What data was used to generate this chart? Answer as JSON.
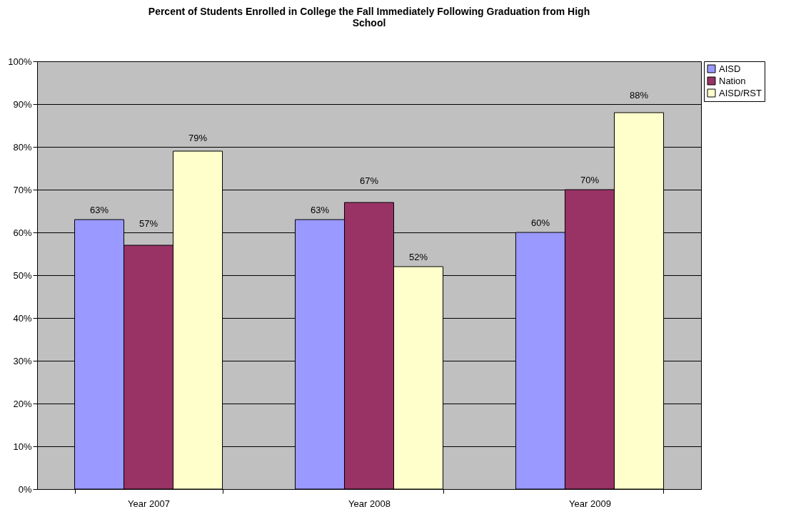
{
  "chart_data": {
    "type": "bar",
    "title": "Percent of Students Enrolled in College the Fall Immediately Following Graduation from High School",
    "categories": [
      "Year 2007",
      "Year 2008",
      "Year 2009"
    ],
    "series": [
      {
        "name": "AISD",
        "color": "#9999ff",
        "values": [
          63,
          63,
          60
        ],
        "value_labels": [
          "63%",
          "63%",
          "60%"
        ]
      },
      {
        "name": "Nation",
        "color": "#993366",
        "values": [
          57,
          67,
          70
        ],
        "value_labels": [
          "57%",
          "67%",
          "70%"
        ]
      },
      {
        "name": "AISD/RST",
        "color": "#ffffcc",
        "values": [
          79,
          52,
          88
        ],
        "value_labels": [
          "79%",
          "52%",
          "88%"
        ]
      }
    ],
    "ylim": [
      0,
      100
    ],
    "yticks": [
      {
        "value": 0,
        "label": "0%"
      },
      {
        "value": 10,
        "label": "10%"
      },
      {
        "value": 20,
        "label": "20%"
      },
      {
        "value": 30,
        "label": "30%"
      },
      {
        "value": 40,
        "label": "40%"
      },
      {
        "value": 50,
        "label": "50%"
      },
      {
        "value": 60,
        "label": "60%"
      },
      {
        "value": 70,
        "label": "70%"
      },
      {
        "value": 80,
        "label": "80%"
      },
      {
        "value": 90,
        "label": "90%"
      },
      {
        "value": 100,
        "label": "100%"
      }
    ],
    "grid": "y",
    "legend": "right"
  }
}
